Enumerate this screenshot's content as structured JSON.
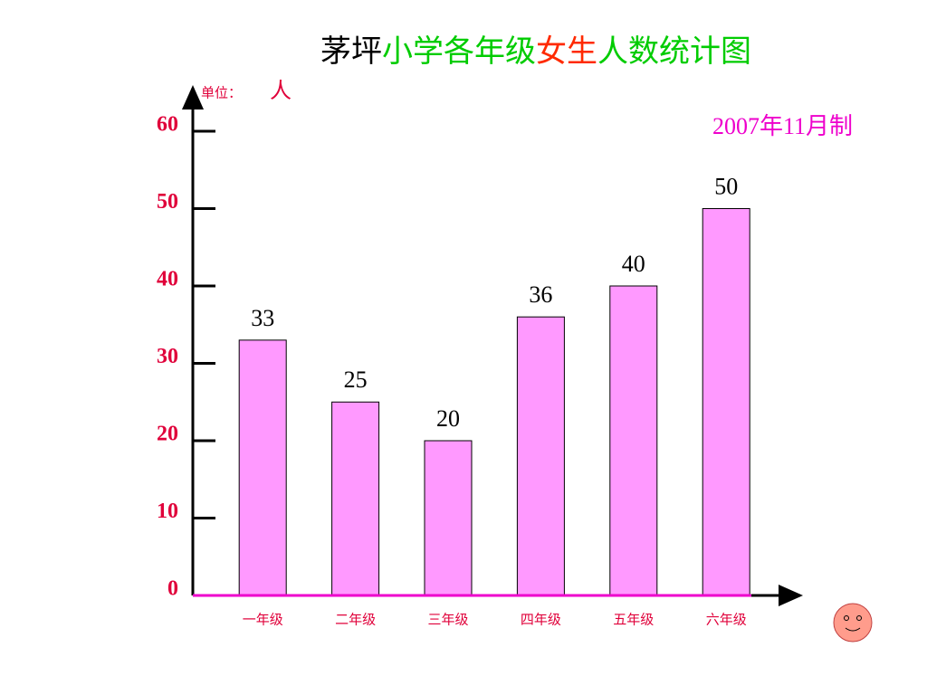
{
  "chart_data": {
    "type": "bar",
    "title": [
      {
        "text": "茅坪",
        "color": "#000000"
      },
      {
        "text": "小学各年级",
        "color": "#00cc00"
      },
      {
        "text": "女生",
        "color": "#ff2a00"
      },
      {
        "text": "人数统计图",
        "color": "#00cc00"
      }
    ],
    "unit_label": "单位：",
    "unit": "人",
    "note": "2007年11月制",
    "categories": [
      "一年级",
      "二年级",
      "三年级",
      "四年级",
      "五年级",
      "六年级"
    ],
    "values": [
      33,
      25,
      20,
      36,
      40,
      50
    ],
    "color": "#ff99ff",
    "ylim": [
      0,
      60
    ],
    "yticks": [
      0,
      10,
      20,
      30,
      40,
      50,
      60
    ]
  }
}
